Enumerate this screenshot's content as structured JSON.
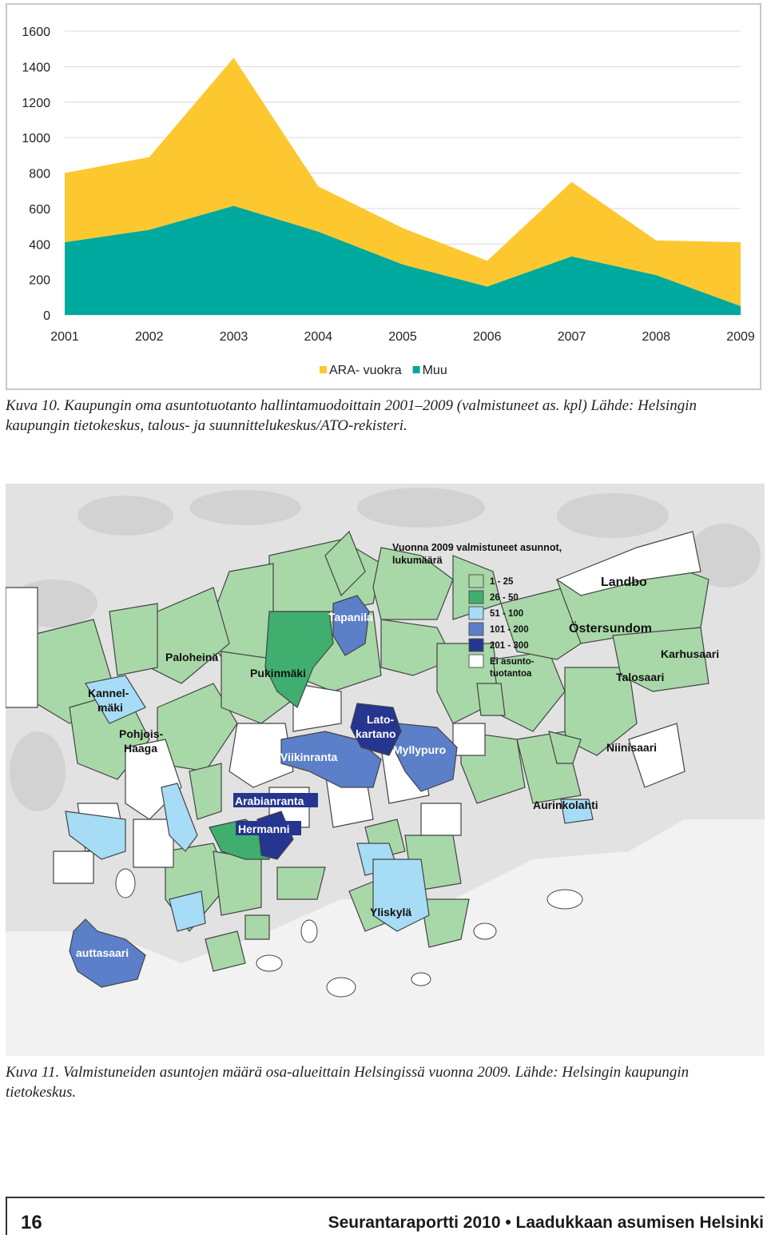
{
  "chart_data": {
    "type": "area",
    "stacked": true,
    "title": "",
    "xlabel": "",
    "ylabel": "",
    "x": [
      "2001",
      "2002",
      "2003",
      "2004",
      "2005",
      "2006",
      "2007",
      "2008",
      "2009"
    ],
    "ylim": [
      0,
      1600
    ],
    "yticks": [
      0,
      200,
      400,
      600,
      800,
      1000,
      1200,
      1400,
      1600
    ],
    "grid": true,
    "legend_position": "bottom-center",
    "series": [
      {
        "name": "Muu",
        "color": "#00a99d",
        "values": [
          410,
          480,
          615,
          470,
          285,
          160,
          330,
          225,
          50
        ]
      },
      {
        "name": "ARA- vuokra",
        "color": "#fdc82f",
        "values": [
          390,
          410,
          835,
          255,
          205,
          145,
          420,
          195,
          360
        ]
      }
    ]
  },
  "captions": {
    "fig10": "Kuva 10. Kaupungin oma asuntotuotanto hallintamuodoittain 2001–2009 (valmistuneet as. kpl) Lähde: Helsingin kaupungin tietokeskus, talous- ja suunnittelukeskus/ATO-rekisteri.",
    "fig11": "Kuva 11. Valmistuneiden asuntojen määrä osa-alueittain Helsingissä vuonna 2009. Lähde: Helsingin kaupungin tietokeskus."
  },
  "map": {
    "legend_title_1": "Vuonna 2009 valmistuneet asunnot,",
    "legend_title_2": "lukumäärä",
    "legend_items": [
      {
        "label": "1 - 25",
        "color": "#a8d8a8"
      },
      {
        "label": "26 - 50",
        "color": "#3fae6e"
      },
      {
        "label": "51 - 100",
        "color": "#a6dcf5"
      },
      {
        "label": "101 - 200",
        "color": "#5b7fc8"
      },
      {
        "label": "201 - 300",
        "color": "#26358f"
      },
      {
        "label": "Ei asunto-\ntuotantoa",
        "color": "#ffffff"
      }
    ],
    "labels": {
      "landbo": "Landbo",
      "ostersundom": "Östersundom",
      "karhusaari": "Karhusaari",
      "talosaari": "Talosaari",
      "niinisaari": "Niinisaari",
      "aurinkolahti": "Aurinkolahti",
      "tapanila": "Tapanila",
      "paloheina": "Paloheinä",
      "pukinmaki": "Pukinmäki",
      "kannelmaki_1": "Kannel-",
      "kannelmaki_2": "mäki",
      "pohjois_haaga_1": "Pohjois-",
      "pohjois_haaga_2": "Haaga",
      "latokartano_1": "Lato-",
      "latokartano_2": "kartano",
      "myllypuro": "Myllypuro",
      "viikinranta": "Viikinranta",
      "arabianranta": "Arabianranta",
      "hermanni": "Hermanni",
      "yliskyla": "Yliskylä",
      "lauttasaari": "auttasaari"
    }
  },
  "footer": {
    "page_number": "16",
    "running_title": "Seurantaraportti 2010 • Laadukkaan asumisen Helsinki"
  }
}
